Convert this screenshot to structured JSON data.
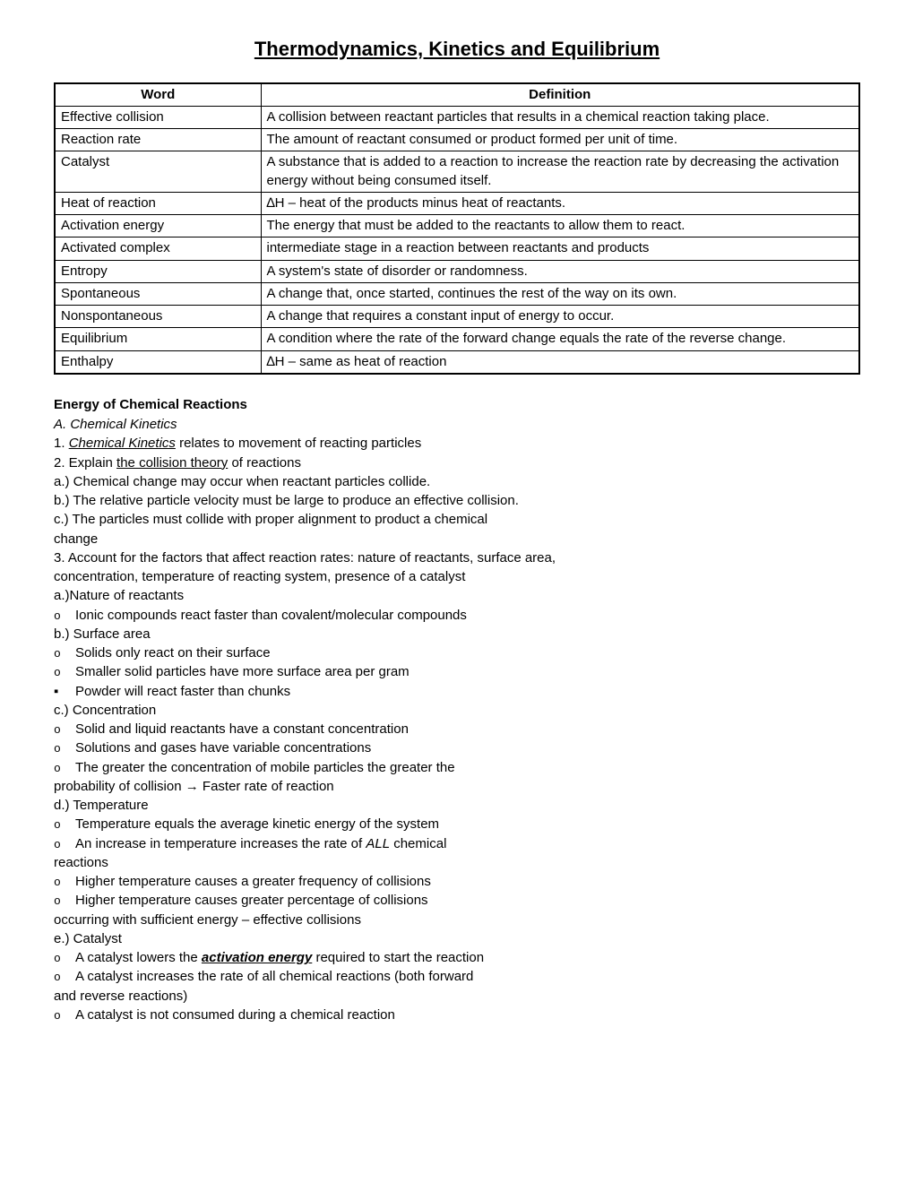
{
  "title": "Thermodynamics, Kinetics and Equilibrium",
  "vocab": {
    "headers": [
      "Word",
      "Definition"
    ],
    "rows": [
      [
        "Effective collision",
        "A collision between reactant particles that results in a chemical reaction taking place."
      ],
      [
        "Reaction rate",
        "The amount of reactant consumed or product formed per unit of time."
      ],
      [
        "Catalyst",
        "A substance that is added to a reaction to increase the reaction rate by decreasing the activation energy without being consumed itself."
      ],
      [
        "Heat of reaction",
        "∆H – heat of the products minus heat of reactants."
      ],
      [
        "Activation energy",
        "The energy that must be added to the reactants to allow them to react."
      ],
      [
        "Activated complex",
        "intermediate stage in a reaction between reactants and products"
      ],
      [
        "Entropy",
        "A system's state of disorder or randomness."
      ],
      [
        "Spontaneous",
        "A change that, once started, continues the rest of the way on its own."
      ],
      [
        "Nonspontaneous",
        "A change that requires a constant input of energy to occur."
      ],
      [
        "Equilibrium",
        "A condition where the rate of the forward change equals the rate of the reverse change."
      ],
      [
        "Enthalpy",
        "∆H – same as heat of reaction"
      ]
    ]
  },
  "section_heading": "Energy of Chemical Reactions",
  "outline": {
    "A_label": "A. Chemical Kinetics",
    "A1_prefix": "1. ",
    "A1_u": "Chemical Kinetics",
    "A1_rest": " relates to movement of reacting particles",
    "A2_prefix": "2. Explain ",
    "A2_u": "the collision theory",
    "A2_rest": " of reactions",
    "A2a": "a.) Chemical change may occur when reactant particles collide.",
    "A2b": "b.) The relative particle velocity must be large to produce an effective collision.",
    "A2c": "c.) The particles must collide with proper alignment to product a chemical",
    "A2c_cont": "change",
    "A3": "3. Account for the factors that affect reaction rates:  nature of reactants, surface area,",
    "A3_cont": "concentration, temperature of reacting system, presence of a catalyst",
    "A3a": "a.)Nature of reactants",
    "A3a_o1": "Ionic compounds react faster than covalent/molecular compounds",
    "A3b": "b.) Surface area",
    "A3b_o1": "Solids only react on their surface",
    "A3b_o2": "Smaller solid particles have more surface area per gram",
    "A3b_sq1": "Powder will react faster than chunks",
    "A3c": "c.) Concentration",
    "A3c_o1": "Solid and liquid reactants have a constant concentration",
    "A3c_o2": "Solutions and gases have variable concentrations",
    "A3c_o3": "The greater the concentration of mobile particles the greater the",
    "A3c_o3_cont": "probability of collision → Faster rate of reaction",
    "A3d": "d.) Temperature",
    "A3d_o1": "Temperature equals the average kinetic energy of the system",
    "A3d_o2_a": "An increase in temperature increases the rate of ",
    "A3d_o2_b": "ALL",
    "A3d_o2_c": " chemical",
    "A3d_o2_cont": "reactions",
    "A3d_o3": "Higher temperature causes a greater frequency of collisions",
    "A3d_o4": "Higher temperature causes greater percentage of collisions",
    "A3d_o4_cont": "occurring with sufficient energy – effective collisions",
    "A3e": "e.) Catalyst",
    "A3e_o1_a": "A catalyst lowers the ",
    "A3e_o1_b": "activation energy",
    "A3e_o1_c": " required to start the reaction",
    "A3e_o2": "A catalyst increases the rate of all chemical reactions (both forward",
    "A3e_o2_cont": "and reverse reactions)",
    "A3e_o3": "A catalyst is not consumed during a chemical reaction"
  }
}
